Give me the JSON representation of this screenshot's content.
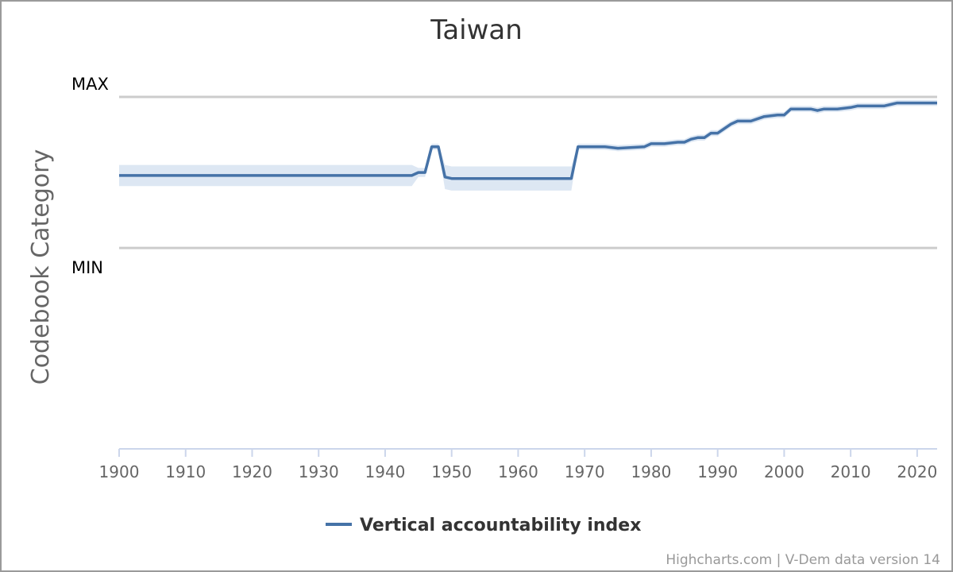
{
  "chart_data": {
    "type": "line",
    "title": "Taiwan",
    "ylabel": "Codebook Category",
    "xlabel": "",
    "plot_lines": {
      "max_label": "MAX",
      "min_label": "MIN"
    },
    "xlim": [
      1900,
      2023
    ],
    "ylim": [
      -1.33,
      1
    ],
    "x_ticks": [
      1900,
      1910,
      1920,
      1930,
      1940,
      1950,
      1960,
      1970,
      1980,
      1990,
      2000,
      2010,
      2020
    ],
    "legend": {
      "position": "bottom-center"
    },
    "series": [
      {
        "name": "Vertical accountability index",
        "color": "#4572A7",
        "band_color": "#dde7f3",
        "points": [
          [
            1900,
            0.48
          ],
          [
            1904,
            0.48
          ],
          [
            1910,
            0.48
          ],
          [
            1920,
            0.48
          ],
          [
            1930,
            0.48
          ],
          [
            1940,
            0.48
          ],
          [
            1944,
            0.48
          ],
          [
            1945,
            0.5
          ],
          [
            1946,
            0.5
          ],
          [
            1947,
            0.67
          ],
          [
            1948,
            0.67
          ],
          [
            1949,
            0.47
          ],
          [
            1950,
            0.46
          ],
          [
            1955,
            0.46
          ],
          [
            1960,
            0.46
          ],
          [
            1965,
            0.46
          ],
          [
            1968,
            0.46
          ],
          [
            1969,
            0.67
          ],
          [
            1973,
            0.67
          ],
          [
            1975,
            0.66
          ],
          [
            1979,
            0.67
          ],
          [
            1980,
            0.69
          ],
          [
            1982,
            0.69
          ],
          [
            1984,
            0.7
          ],
          [
            1985,
            0.7
          ],
          [
            1986,
            0.72
          ],
          [
            1987,
            0.73
          ],
          [
            1988,
            0.73
          ],
          [
            1989,
            0.76
          ],
          [
            1990,
            0.76
          ],
          [
            1992,
            0.82
          ],
          [
            1993,
            0.84
          ],
          [
            1995,
            0.84
          ],
          [
            1997,
            0.87
          ],
          [
            1999,
            0.88
          ],
          [
            2000,
            0.88
          ],
          [
            2001,
            0.92
          ],
          [
            2002,
            0.92
          ],
          [
            2004,
            0.92
          ],
          [
            2005,
            0.91
          ],
          [
            2006,
            0.92
          ],
          [
            2008,
            0.92
          ],
          [
            2010,
            0.93
          ],
          [
            2011,
            0.94
          ],
          [
            2013,
            0.94
          ],
          [
            2014,
            0.94
          ],
          [
            2015,
            0.94
          ],
          [
            2016,
            0.95
          ],
          [
            2017,
            0.96
          ],
          [
            2019,
            0.96
          ],
          [
            2021,
            0.96
          ],
          [
            2023,
            0.96
          ]
        ],
        "band_half_width": [
          [
            1900,
            0.07
          ],
          [
            1944,
            0.07
          ],
          [
            1945,
            0.03
          ],
          [
            1946,
            0.03
          ],
          [
            1947,
            0.02
          ],
          [
            1948,
            0.02
          ],
          [
            1949,
            0.08
          ],
          [
            1968,
            0.08
          ],
          [
            1969,
            0.02
          ],
          [
            1980,
            0.02
          ],
          [
            1990,
            0.02
          ],
          [
            2000,
            0.02
          ],
          [
            2023,
            0.02
          ]
        ]
      }
    ]
  },
  "credits": "Highcharts.com | V-Dem data version 14"
}
